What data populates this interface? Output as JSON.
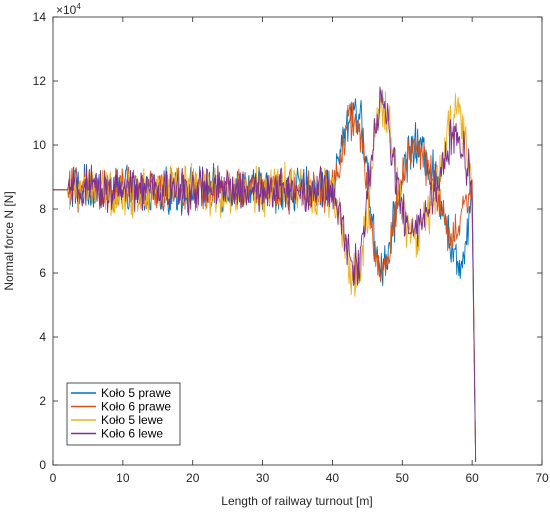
{
  "chart_data": {
    "type": "line",
    "title": "",
    "xlabel": "Length of railway turnout [m]",
    "ylabel": "Normal force N [N]",
    "xlim": [
      0,
      70
    ],
    "ylim": [
      0,
      14
    ],
    "y_multiplier_label": "×10",
    "y_multiplier_exponent": "4",
    "x_ticks": [
      "0",
      "10",
      "20",
      "30",
      "40",
      "50",
      "60",
      "70"
    ],
    "y_ticks": [
      "0",
      "2",
      "4",
      "6",
      "8",
      "10",
      "12",
      "14"
    ],
    "grid": false,
    "legend_position": "bottom-left",
    "series": [
      {
        "name": "Koło 5 prawe",
        "color": "#0072BD",
        "x": [
          0,
          2,
          5,
          10,
          15,
          20,
          25,
          30,
          35,
          38,
          40,
          41,
          42,
          43,
          44,
          45,
          46,
          47,
          48,
          49,
          50,
          51,
          52,
          53,
          54,
          55,
          56,
          57,
          58,
          59,
          60,
          60.5
        ],
        "y": [
          8.6,
          8.6,
          8.6,
          8.6,
          8.5,
          8.6,
          8.6,
          8.6,
          8.6,
          8.6,
          8.7,
          9.6,
          10.6,
          11.2,
          10.8,
          9.2,
          7.0,
          6.2,
          6.6,
          7.8,
          9.0,
          9.9,
          10.0,
          9.8,
          9.4,
          8.8,
          8.0,
          6.8,
          6.1,
          6.9,
          8.6,
          0.1
        ],
        "noise": 0.55
      },
      {
        "name": "Koło 6 prawe",
        "color": "#D95319",
        "x": [
          0,
          2,
          5,
          10,
          15,
          20,
          25,
          30,
          35,
          38,
          40,
          41,
          42,
          43,
          44,
          45,
          46,
          47,
          48,
          49,
          50,
          51,
          52,
          53,
          54,
          55,
          56,
          57,
          58,
          59,
          60,
          60.5
        ],
        "y": [
          8.6,
          8.6,
          8.6,
          8.6,
          8.6,
          8.5,
          8.6,
          8.6,
          8.6,
          8.6,
          8.6,
          9.5,
          10.5,
          10.9,
          10.3,
          8.6,
          6.6,
          6.0,
          6.5,
          7.9,
          9.1,
          9.8,
          9.9,
          9.6,
          9.2,
          8.5,
          7.6,
          7.0,
          7.4,
          8.2,
          8.8,
          0.1
        ],
        "noise": 0.5
      },
      {
        "name": "Koło 5 lewe",
        "color": "#EDB120",
        "x": [
          0,
          2,
          5,
          10,
          15,
          20,
          25,
          30,
          35,
          38,
          40,
          41,
          42,
          43,
          44,
          45,
          46,
          47,
          48,
          49,
          50,
          51,
          52,
          53,
          54,
          55,
          56,
          57,
          58,
          59,
          60,
          60.5
        ],
        "y": [
          8.6,
          8.6,
          8.6,
          8.5,
          8.6,
          8.6,
          8.5,
          8.6,
          8.6,
          8.6,
          8.5,
          7.6,
          6.6,
          5.8,
          6.2,
          7.8,
          10.2,
          11.3,
          10.8,
          9.4,
          8.1,
          7.3,
          7.1,
          7.5,
          8.0,
          8.7,
          9.7,
          10.8,
          11.4,
          10.2,
          8.5,
          0.1
        ],
        "noise": 0.6
      },
      {
        "name": "Koło 6 lewe",
        "color": "#7E2F8E",
        "x": [
          0,
          2,
          5,
          10,
          15,
          20,
          25,
          30,
          35,
          38,
          40,
          41,
          42,
          43,
          44,
          45,
          46,
          47,
          48,
          49,
          50,
          51,
          52,
          53,
          54,
          55,
          56,
          57,
          58,
          59,
          60,
          60.5
        ],
        "y": [
          8.6,
          8.6,
          8.6,
          8.6,
          8.6,
          8.6,
          8.6,
          8.6,
          8.6,
          8.6,
          8.6,
          7.8,
          6.9,
          6.2,
          6.5,
          8.1,
          10.5,
          11.4,
          10.6,
          9.1,
          7.9,
          7.4,
          7.3,
          7.7,
          8.2,
          8.8,
          9.5,
          10.2,
          10.3,
          9.6,
          8.7,
          0.1
        ],
        "noise": 0.55
      }
    ]
  }
}
